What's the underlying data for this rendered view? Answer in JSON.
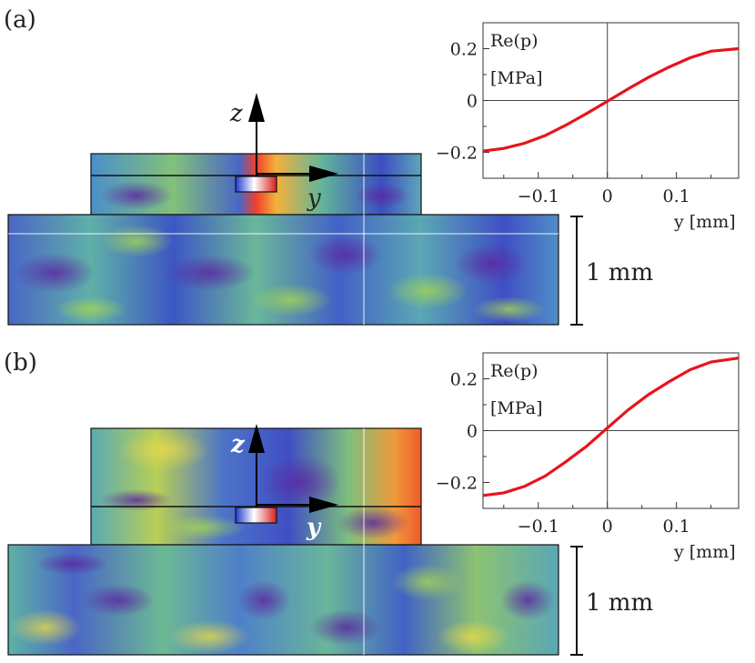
{
  "panels": [
    {
      "label": "(a)",
      "axis_labels": {
        "z": "z",
        "y": "y"
      },
      "scale_bar": "1 mm"
    },
    {
      "label": "(b)",
      "axis_labels": {
        "z": "z",
        "y": "y"
      },
      "scale_bar": "1 mm"
    }
  ],
  "colors": {
    "curve": "#e8141b",
    "field_low": "#3f4fc4",
    "field_mid": "#7ac07f",
    "field_high": "#f0402a"
  },
  "chart_data": [
    {
      "type": "line",
      "panel": "(a)",
      "ylabel_line1": "Re(p)",
      "ylabel_line2": "[MPa]",
      "xlabel": "y [mm]",
      "xlim": [
        -0.18,
        0.19
      ],
      "ylim": [
        -0.3,
        0.3
      ],
      "xticks": [
        -0.1,
        0,
        0.1
      ],
      "xtick_labels": [
        "−0.1",
        "0",
        "0.1"
      ],
      "yticks": [
        0.2,
        0,
        -0.2
      ],
      "ytick_labels": [
        "0.2",
        "0",
        "−0.2"
      ],
      "series": [
        {
          "x": [
            -0.18,
            -0.15,
            -0.12,
            -0.09,
            -0.06,
            -0.03,
            0.0,
            0.03,
            0.06,
            0.09,
            0.12,
            0.15,
            0.19
          ],
          "y": [
            -0.195,
            -0.185,
            -0.165,
            -0.135,
            -0.095,
            -0.05,
            -0.003,
            0.045,
            0.09,
            0.13,
            0.165,
            0.19,
            0.2
          ]
        }
      ]
    },
    {
      "type": "line",
      "panel": "(b)",
      "ylabel_line1": "Re(p)",
      "ylabel_line2": "[MPa]",
      "xlabel": "y [mm]",
      "xlim": [
        -0.18,
        0.19
      ],
      "ylim": [
        -0.3,
        0.3
      ],
      "xticks": [
        -0.1,
        0,
        0.1
      ],
      "xtick_labels": [
        "−0.1",
        "0",
        "0.1"
      ],
      "yticks": [
        0.2,
        0,
        -0.2
      ],
      "ytick_labels": [
        "0.2",
        "0",
        "−0.2"
      ],
      "series": [
        {
          "x": [
            -0.18,
            -0.15,
            -0.12,
            -0.09,
            -0.06,
            -0.03,
            0.0,
            0.03,
            0.06,
            0.09,
            0.12,
            0.15,
            0.19
          ],
          "y": [
            -0.25,
            -0.24,
            -0.215,
            -0.175,
            -0.12,
            -0.06,
            0.01,
            0.08,
            0.14,
            0.19,
            0.235,
            0.265,
            0.28
          ]
        }
      ]
    }
  ]
}
